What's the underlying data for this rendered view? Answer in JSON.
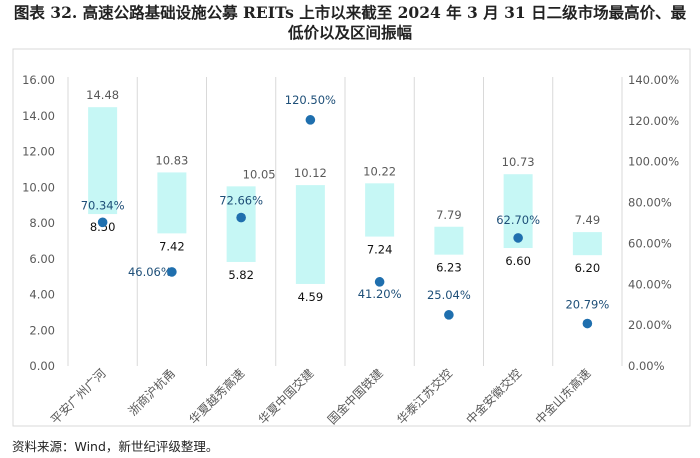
{
  "title": "图表 32. 高速公路基础设施公募 REITs 上市以来截至 2024 年 3 月 31 日二级市场最高价、最",
  "title_line2": "低价以及区间振幅",
  "source": "资料来源：Wind，新世纪评级整理。",
  "colors": {
    "bar": "#c6f7f5",
    "dot": "#1f6fae",
    "label_blue": "#1e4f78",
    "axis_text": "#595959",
    "separator": "#d9d9d9"
  },
  "chart_data": {
    "type": "bar",
    "categories": [
      "平安广州广河",
      "浙商沪杭甬",
      "华夏越秀高速",
      "华夏中国交建",
      "国金中国铁建",
      "华泰江苏交控",
      "中金安徽交控",
      "中金山东高速"
    ],
    "high_labels": [
      "14.48",
      "10.83",
      "10.05",
      "10.12",
      "10.22",
      "7.79",
      "10.73",
      "7.49"
    ],
    "low_labels": [
      "8.50",
      "7.42",
      "5.82",
      "4.59",
      "7.24",
      "6.23",
      "6.60",
      "6.20"
    ],
    "amplitude_labels": [
      "70.34%",
      "46.06%",
      "72.66%",
      "120.50%",
      "41.20%",
      "25.04%",
      "62.70%",
      "20.79%"
    ],
    "series": [
      {
        "values": [
          14.48,
          10.83,
          10.05,
          10.12,
          10.22,
          7.79,
          10.73,
          7.49
        ]
      },
      {
        "values": [
          8.5,
          7.42,
          5.82,
          4.59,
          7.24,
          6.23,
          6.6,
          6.2
        ]
      },
      {
        "values": [
          70.34,
          46.06,
          72.66,
          120.5,
          41.2,
          25.04,
          62.7,
          20.79
        ]
      }
    ],
    "ylim": [
      0,
      16
    ],
    "y_ticks": [
      "0.00",
      "2.00",
      "4.00",
      "6.00",
      "8.00",
      "10.00",
      "12.00",
      "14.00",
      "16.00"
    ],
    "y2lim": [
      0,
      140
    ],
    "y2_ticks": [
      "0.00%",
      "20.00%",
      "40.00%",
      "60.00%",
      "80.00%",
      "100.00%",
      "120.00%",
      "140.00%"
    ]
  }
}
